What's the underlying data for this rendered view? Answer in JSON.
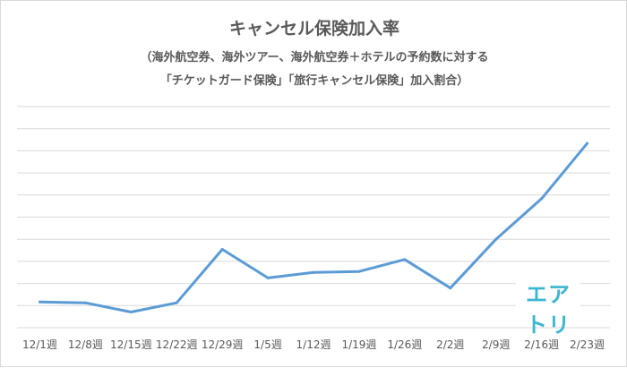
{
  "chart_data": {
    "type": "line",
    "title": "キャンセル保険加入率",
    "subtitle_lines": [
      "（海外航空券、海外ツアー、海外航空券＋ホテルの予約数に対する",
      "「チケットガード保険」「旅行キャンセル保険」加入割合）"
    ],
    "categories": [
      "12/1週",
      "12/8週",
      "12/15週",
      "12/22週",
      "12/29週",
      "1/5週",
      "1/12週",
      "1/19週",
      "1/26週",
      "2/2週",
      "2/9週",
      "2/16週",
      "2/23週"
    ],
    "values": [
      2.8,
      2.7,
      1.7,
      2.7,
      8.5,
      5.4,
      6.0,
      6.1,
      7.4,
      4.3,
      9.6,
      14.0,
      20.0
    ],
    "ylim": [
      0,
      24
    ],
    "y_gridlines": 10,
    "grid": true,
    "legend": "none",
    "y_tick_labels": "hidden",
    "line_color": "#5b9bd5"
  },
  "watermark": {
    "logo_text": "エアトリ",
    "color": "#3cb7d0"
  }
}
